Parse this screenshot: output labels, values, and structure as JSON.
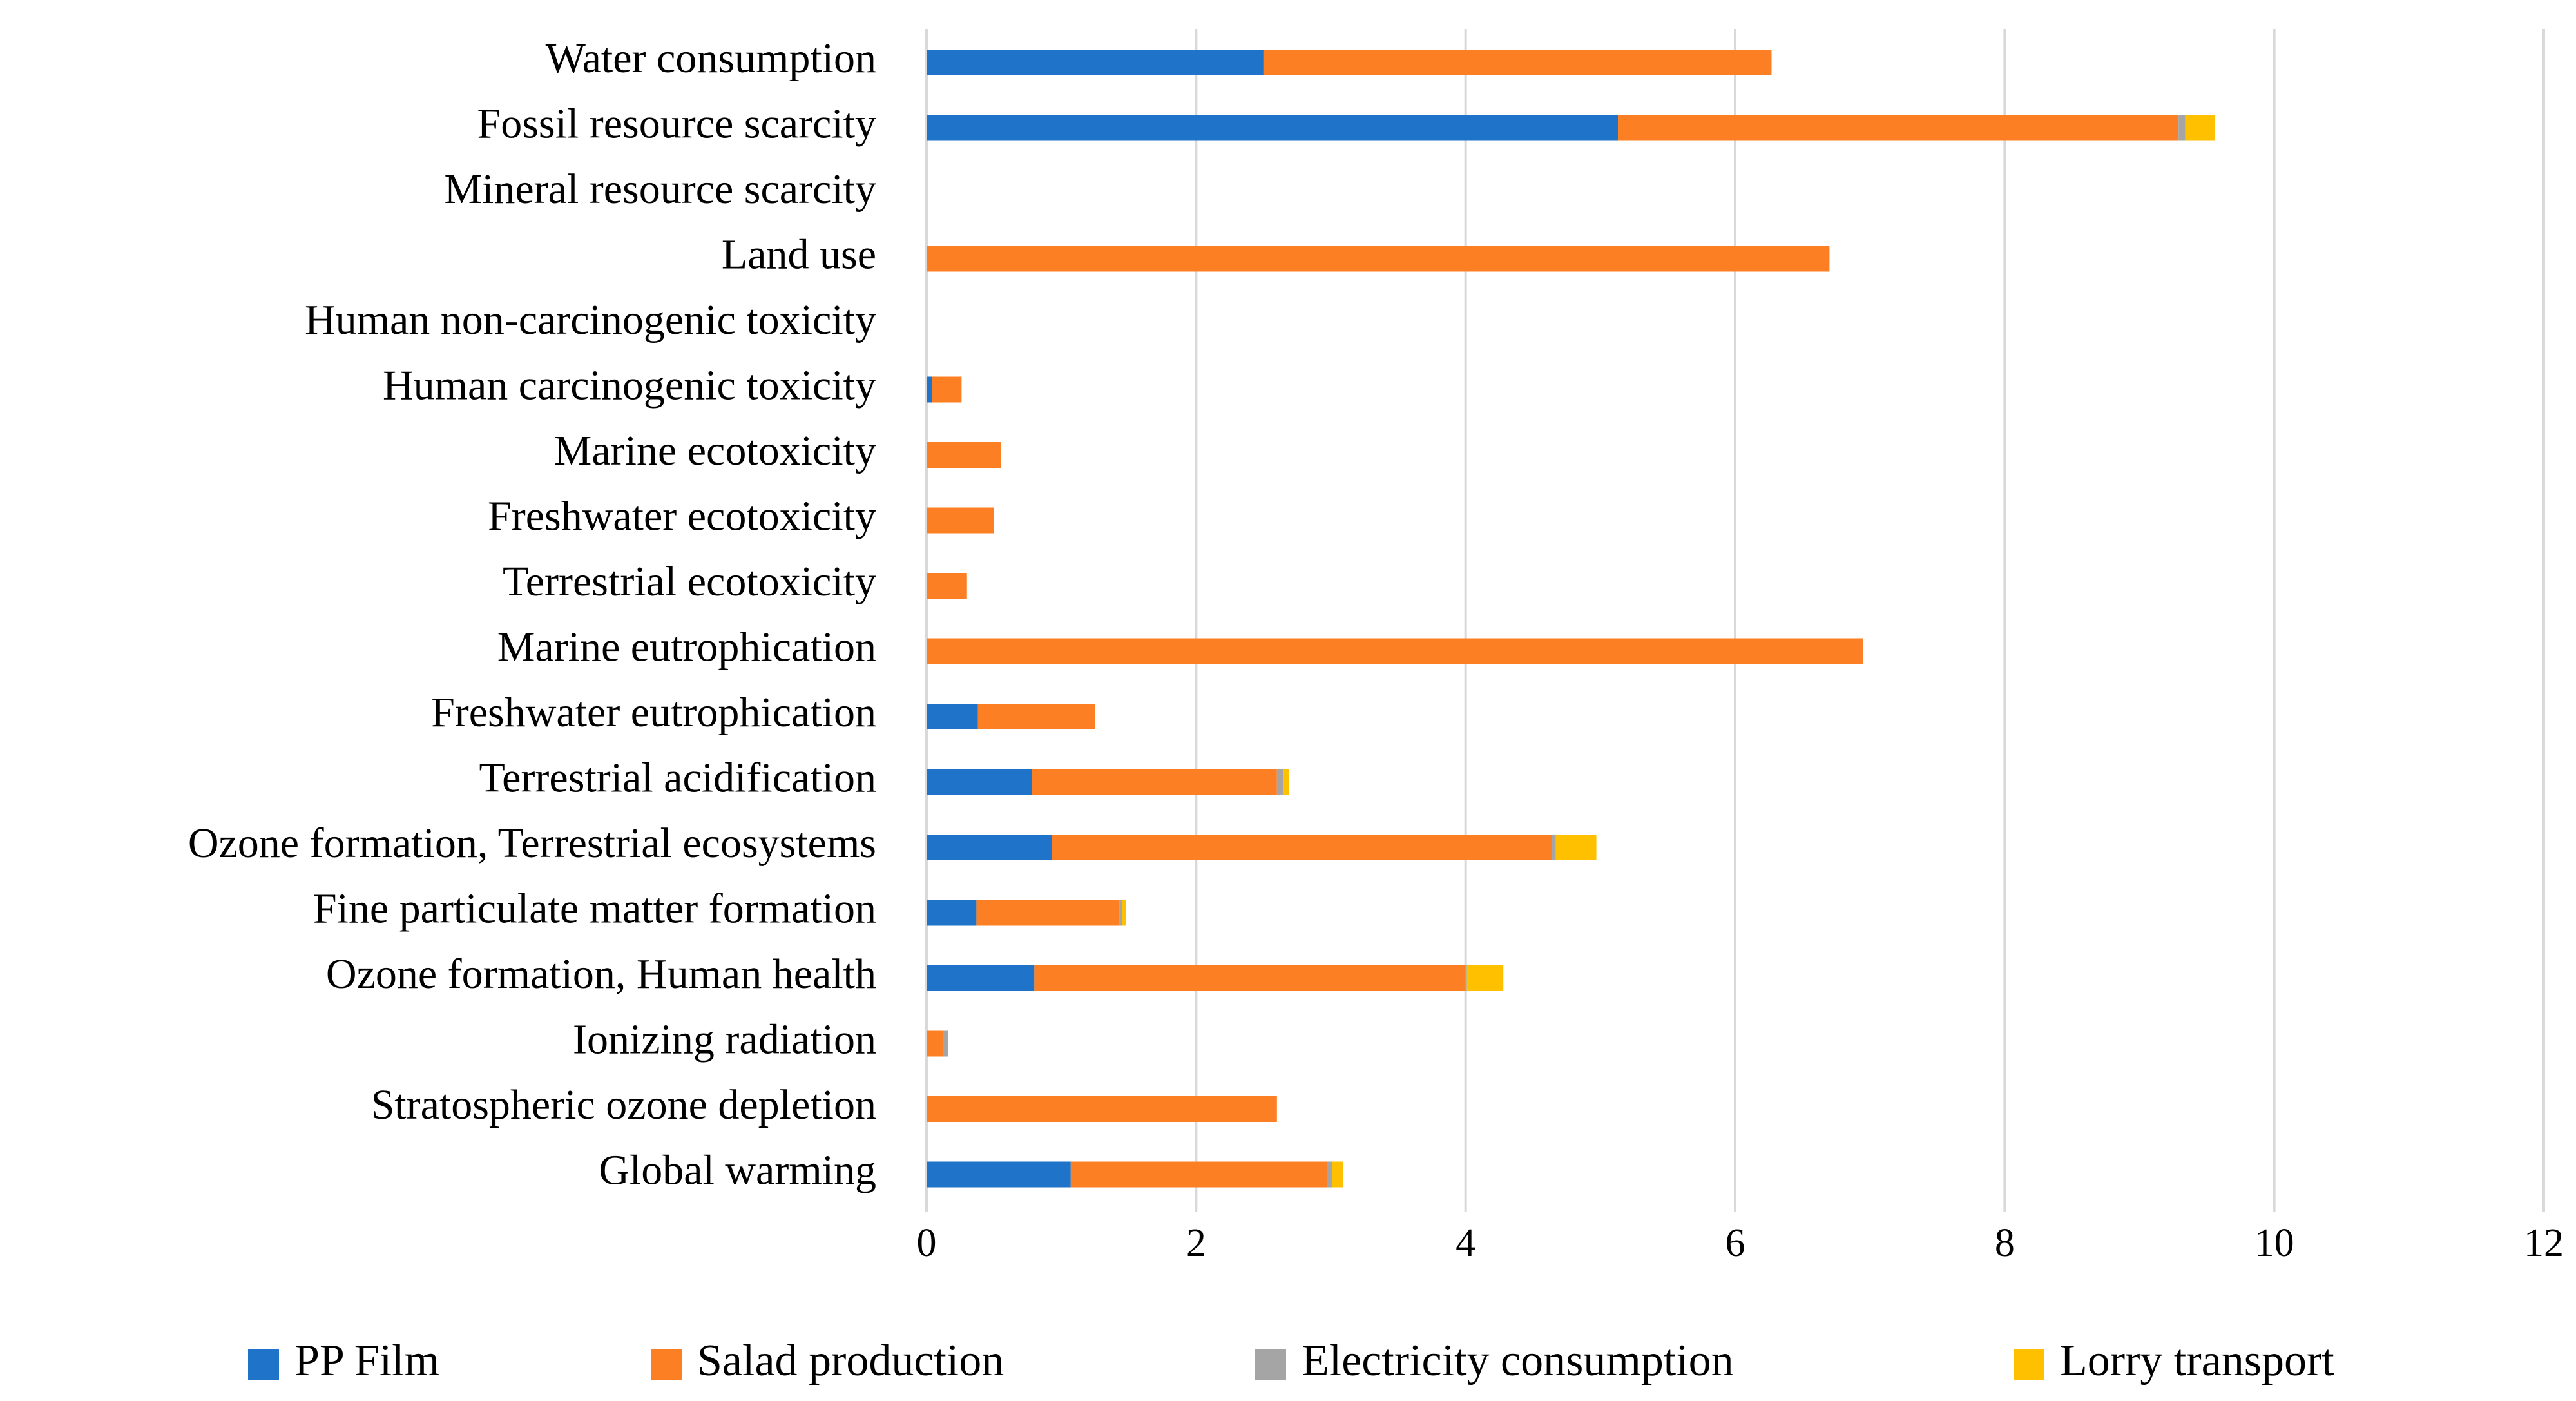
{
  "chart_data": {
    "type": "bar",
    "orientation": "horizontal",
    "stacked": true,
    "title": "",
    "xlabel": "",
    "ylabel": "",
    "xlim": [
      0,
      12
    ],
    "x_ticks": [
      "0",
      "2",
      "4",
      "6",
      "8",
      "10",
      "12"
    ],
    "grid": true,
    "legend_position": "bottom",
    "categories": [
      "Water consumption",
      "Fossil resource scarcity",
      "Mineral resource scarcity",
      "Land use",
      "Human non-carcinogenic toxicity",
      "Human carcinogenic toxicity",
      "Marine ecotoxicity",
      "Freshwater ecotoxicity",
      "Terrestrial ecotoxicity",
      "Marine eutrophication",
      "Freshwater eutrophication",
      "Terrestrial acidification",
      "Ozone formation, Terrestrial ecosystems",
      "Fine particulate matter formation",
      "Ozone formation, Human health",
      "Ionizing radiation",
      "Stratospheric ozone depletion",
      "Global warming"
    ],
    "series": [
      {
        "name": "PP Film",
        "color": "#1f73c8",
        "values": [
          2.5,
          5.13,
          0,
          0,
          0,
          0.04,
          0,
          0,
          0,
          0,
          0.38,
          0.78,
          0.93,
          0.37,
          0.8,
          0,
          0,
          1.07
        ]
      },
      {
        "name": "Salad production",
        "color": "#fd7f23",
        "values": [
          3.77,
          4.16,
          0,
          6.7,
          0,
          0.22,
          0.55,
          0.5,
          0.3,
          6.95,
          0.87,
          1.82,
          3.71,
          1.06,
          3.2,
          0.12,
          2.6,
          1.9
        ]
      },
      {
        "name": "Electricity consumption",
        "color": "#a5a5a5",
        "values": [
          0,
          0.05,
          0,
          0,
          0,
          0,
          0,
          0,
          0,
          0,
          0,
          0.05,
          0.03,
          0.02,
          0.01,
          0.04,
          0,
          0.04
        ]
      },
      {
        "name": "Lorry transport",
        "color": "#ffc000",
        "values": [
          0,
          0.22,
          0,
          0,
          0,
          0,
          0,
          0,
          0,
          0,
          0,
          0.04,
          0.3,
          0.03,
          0.27,
          0,
          0,
          0.08
        ]
      }
    ]
  }
}
